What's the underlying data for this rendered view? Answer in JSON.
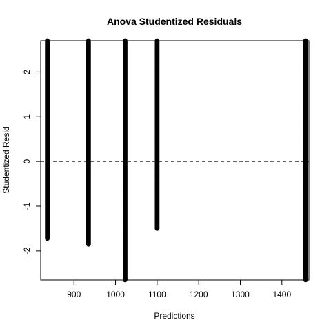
{
  "chart_data": {
    "type": "scatter",
    "title": "Anova Studentized Residuals",
    "xlabel": "Predictions",
    "ylabel": "Studentized Resid",
    "xlim": [
      820,
      1465
    ],
    "ylim": [
      -2.65,
      2.7
    ],
    "xticks": [
      900,
      1000,
      1100,
      1200,
      1300,
      1400
    ],
    "yticks": [
      -2,
      -1,
      0,
      1,
      2
    ],
    "reference_line": {
      "y": 0,
      "style": "dashed"
    },
    "grid": false,
    "series": [
      {
        "x": 836,
        "ymin": -1.73,
        "ymax": 2.7
      },
      {
        "x": 935,
        "ymin": -1.86,
        "ymax": 2.7
      },
      {
        "x": 1023,
        "ymin": -2.65,
        "ymax": 2.7
      },
      {
        "x": 1100,
        "ymin": -1.51,
        "ymax": 2.7
      },
      {
        "x": 1457,
        "ymin": -2.65,
        "ymax": 2.7
      }
    ],
    "colors": {
      "points": "#000000",
      "axes": "#000000",
      "background": "#ffffff"
    }
  }
}
